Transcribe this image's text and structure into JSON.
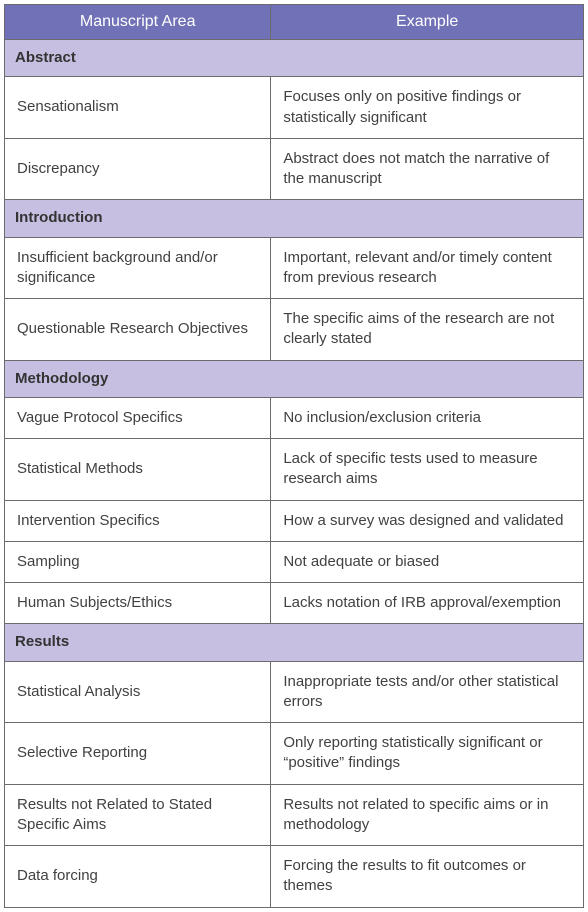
{
  "table": {
    "border_color": "#6a6a6f",
    "header_bg": "#7171b7",
    "header_text_color": "#ffffff",
    "section_bg": "#c6bfe1",
    "cell_bg": "#ffffff",
    "text_color": "#414141",
    "col_widths": [
      "46%",
      "54%"
    ],
    "columns": [
      "Manuscript Area",
      "Example"
    ],
    "sections": [
      {
        "title": "Abstract",
        "rows": [
          {
            "area": "Sensationalism",
            "example": "Focuses only on positive findings or statistically significant"
          },
          {
            "area": "Discrepancy",
            "example": "Abstract does not match the narrative of the manuscript"
          }
        ]
      },
      {
        "title": "Introduction",
        "rows": [
          {
            "area": "Insufficient background and/or significance",
            "example": "Important, relevant and/or timely content from previous research"
          },
          {
            "area": "Questionable Research Objectives",
            "example": "The specific aims of the research are not clearly stated"
          }
        ]
      },
      {
        "title": "Methodology",
        "rows": [
          {
            "area": "Vague Protocol Specifics",
            "example": "No inclusion/exclusion criteria"
          },
          {
            "area": "Statistical Methods",
            "example": "Lack of specific tests used to measure research aims"
          },
          {
            "area": "Intervention Specifics",
            "example": "How a survey was designed and validated"
          },
          {
            "area": "Sampling",
            "example": "Not adequate or biased"
          },
          {
            "area": "Human Subjects/Ethics",
            "example": "Lacks notation of IRB approval/exemption"
          }
        ]
      },
      {
        "title": "Results",
        "rows": [
          {
            "area": "Statistical Analysis",
            "example": "Inappropriate tests and/or other statistical errors"
          },
          {
            "area": "Selective Reporting",
            "example": "Only reporting statistically significant or “positive” findings"
          },
          {
            "area": "Results not Related to Stated Specific Aims",
            "example": "Results not related to specific aims or in methodology"
          },
          {
            "area": "Data forcing",
            "example": "Forcing the results to fit outcomes or themes"
          }
        ]
      }
    ]
  }
}
